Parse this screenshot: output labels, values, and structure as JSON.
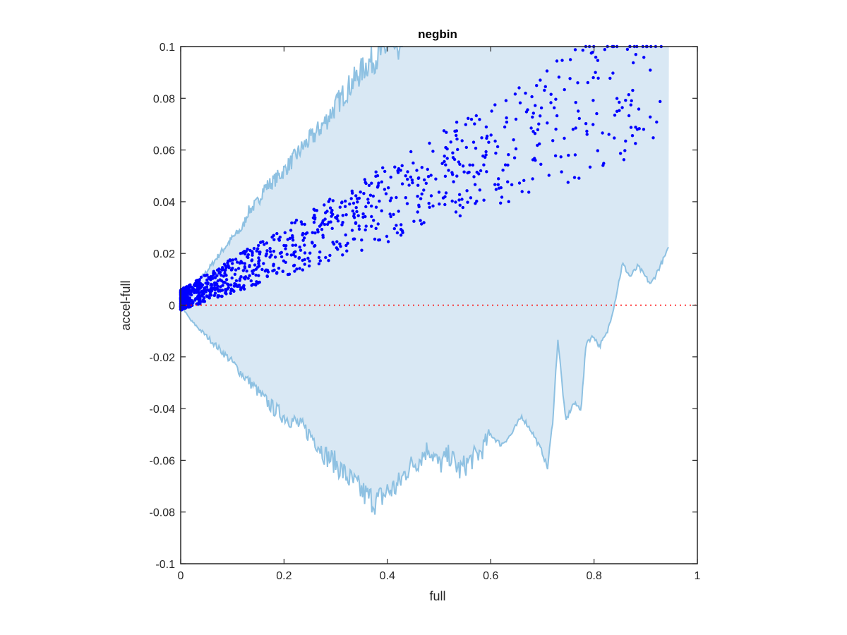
{
  "chart_data": {
    "type": "scatter",
    "title": "negbin",
    "xlabel": "full",
    "ylabel": "accel-full",
    "xlim": [
      0,
      1
    ],
    "ylim": [
      -0.1,
      0.1
    ],
    "x_ticks": [
      0,
      0.2,
      0.4,
      0.6,
      0.8,
      1
    ],
    "x_tick_labels": [
      "0",
      "0.2",
      "0.4",
      "0.6",
      "0.8",
      "1"
    ],
    "y_ticks": [
      -0.1,
      -0.08,
      -0.06,
      -0.04,
      -0.02,
      0,
      0.02,
      0.04,
      0.06,
      0.08,
      0.1
    ],
    "y_tick_labels": [
      "-0.1",
      "-0.08",
      "-0.06",
      "-0.04",
      "-0.02",
      "0",
      "0.02",
      "0.04",
      "0.06",
      "0.08",
      "0.1"
    ],
    "grid": false,
    "colors": {
      "points": "#0000ff",
      "band_fill": "#d9e8f4",
      "band_line": "#8ec1e2",
      "zero_line": "#ff0000"
    },
    "band_upper": [
      [
        0,
        0
      ],
      [
        0.02,
        0.006
      ],
      [
        0.05,
        0.013
      ],
      [
        0.08,
        0.021
      ],
      [
        0.1,
        0.026
      ],
      [
        0.12,
        0.03
      ],
      [
        0.13,
        0.036
      ],
      [
        0.15,
        0.04
      ],
      [
        0.16,
        0.045
      ],
      [
        0.18,
        0.048
      ],
      [
        0.2,
        0.052
      ],
      [
        0.22,
        0.057
      ],
      [
        0.24,
        0.062
      ],
      [
        0.26,
        0.066
      ],
      [
        0.28,
        0.071
      ],
      [
        0.3,
        0.077
      ],
      [
        0.32,
        0.083
      ],
      [
        0.34,
        0.088
      ],
      [
        0.36,
        0.093
      ],
      [
        0.38,
        0.096
      ],
      [
        0.4,
        0.1
      ],
      [
        0.43,
        0.1
      ],
      [
        0.945,
        0.1
      ]
    ],
    "band_lower": [
      [
        0,
        0
      ],
      [
        0.02,
        -0.006
      ],
      [
        0.05,
        -0.012
      ],
      [
        0.08,
        -0.018
      ],
      [
        0.1,
        -0.022
      ],
      [
        0.12,
        -0.027
      ],
      [
        0.14,
        -0.031
      ],
      [
        0.16,
        -0.036
      ],
      [
        0.18,
        -0.04
      ],
      [
        0.2,
        -0.043
      ],
      [
        0.22,
        -0.045
      ],
      [
        0.24,
        -0.048
      ],
      [
        0.26,
        -0.052
      ],
      [
        0.28,
        -0.058
      ],
      [
        0.3,
        -0.061
      ],
      [
        0.32,
        -0.066
      ],
      [
        0.34,
        -0.07
      ],
      [
        0.36,
        -0.074
      ],
      [
        0.38,
        -0.076
      ],
      [
        0.4,
        -0.072
      ],
      [
        0.42,
        -0.07
      ],
      [
        0.44,
        -0.063
      ],
      [
        0.46,
        -0.06
      ],
      [
        0.48,
        -0.055
      ],
      [
        0.5,
        -0.062
      ],
      [
        0.52,
        -0.058
      ],
      [
        0.54,
        -0.064
      ],
      [
        0.56,
        -0.06
      ],
      [
        0.58,
        -0.057
      ],
      [
        0.6,
        -0.05
      ],
      [
        0.62,
        -0.054
      ],
      [
        0.64,
        -0.05
      ],
      [
        0.66,
        -0.043
      ],
      [
        0.68,
        -0.049
      ],
      [
        0.7,
        -0.057
      ],
      [
        0.71,
        -0.063
      ],
      [
        0.72,
        -0.045
      ],
      [
        0.73,
        -0.013
      ],
      [
        0.745,
        -0.045
      ],
      [
        0.76,
        -0.038
      ],
      [
        0.775,
        -0.04
      ],
      [
        0.785,
        -0.014
      ],
      [
        0.8,
        -0.012
      ],
      [
        0.81,
        -0.016
      ],
      [
        0.825,
        -0.011
      ],
      [
        0.84,
        0.001
      ],
      [
        0.855,
        0.016
      ],
      [
        0.87,
        0.011
      ],
      [
        0.885,
        0.015
      ],
      [
        0.91,
        0.008
      ],
      [
        0.945,
        0.022
      ]
    ],
    "zero_line_y": 0,
    "n_points": 1100
  }
}
